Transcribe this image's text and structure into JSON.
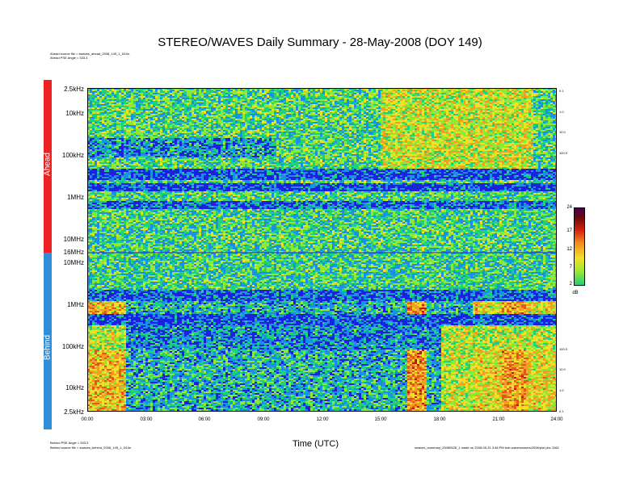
{
  "chart_data": {
    "type": "heatmap",
    "title": "STEREO/WAVES Daily Summary - 28-May-2008 (DOY 149)",
    "xlabel": "Time (UTC)",
    "x_ticks": [
      "00:00",
      "03:00",
      "06:00",
      "09:00",
      "12:00",
      "15:00",
      "18:00",
      "21:00",
      "24:00"
    ],
    "xlim": [
      "00:00",
      "24:00"
    ],
    "panels": [
      {
        "name": "Ahead",
        "y_ticks": [
          "2.5kHz",
          "10kHz",
          "100kHz",
          "1MHz",
          "10MHz",
          "16MHz"
        ],
        "right_ticks": [
          "0.1",
          "1.0",
          "10.0",
          "100.0"
        ],
        "bands": [
          {
            "freq": "2.5kHz-100kHz",
            "level": "mixed, enhanced 18:00-22:00"
          },
          {
            "freq": "~300kHz",
            "level": "low"
          },
          {
            "freq": "1MHz",
            "level": "low"
          },
          {
            "freq": "1MHz-16MHz",
            "level": "moderate"
          }
        ]
      },
      {
        "name": "Behind",
        "y_ticks": [
          "10MHz",
          "1MHz",
          "100kHz",
          "10kHz",
          "2.5kHz"
        ],
        "right_ticks": [
          "100.0",
          "10.0",
          "1.0",
          "0.1"
        ],
        "bands": [
          {
            "freq": "2.5kHz-100kHz",
            "level": "enhanced 00:00-02:00, 16:00-17:00 and 20:00-24:00"
          },
          {
            "freq": "~300kHz",
            "level": "low"
          },
          {
            "freq": "1MHz",
            "level": "low"
          },
          {
            "freq": "1MHz-10MHz",
            "level": "moderate"
          }
        ]
      }
    ],
    "colorbar": {
      "label": "dB",
      "ticks": [
        "24",
        "17",
        "12",
        "7",
        "2"
      ],
      "range": [
        2,
        24
      ]
    }
  },
  "meta": {
    "ahead_source": "Ahead source file = swaves_ahead_2008_149_1_04.lin",
    "ahead_pse": "Ahead PSE Angle = 333.3",
    "behind_pse": "Behind PSE Angle = 333.3",
    "behind_source": "Behind source file = swaves_behind_2008_149_1_04.lin",
    "footer": "swaves_summary_20080528_1 made on 2008-05-31 3:48 PM bob-wave/swaves/2008/plot pbc 1062"
  },
  "colors": {
    "ahead_bar": "#ee2222",
    "behind_bar": "#2e8fd8",
    "low": "#1a22e0",
    "mid": "#1fd17a",
    "high": "#f2e028",
    "peak": "#e8541e"
  }
}
